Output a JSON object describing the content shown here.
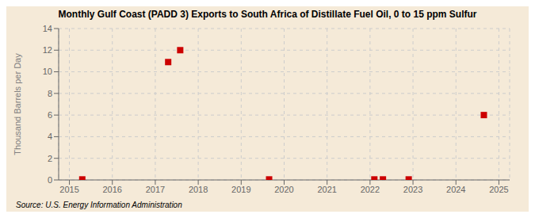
{
  "chart_data": {
    "type": "scatter",
    "title": "Monthly Gulf Coast (PADD 3) Exports to South Africa of Distillate Fuel Oil, 0 to 15 ppm Sulfur",
    "y_label": "Thousand Barrels per Day",
    "annotations": [
      "Source: U.S. Energy Information Administration"
    ],
    "x": [
      2015.3,
      2017.3,
      2017.58,
      2019.65,
      2022.1,
      2022.3,
      2022.9,
      2024.65
    ],
    "values": [
      0.05,
      10.9,
      12.0,
      0.05,
      0.05,
      0.05,
      0.05,
      6.0
    ],
    "color": "#cc0000",
    "marker": "square",
    "xlim": [
      2014.75,
      2025.25
    ],
    "xticks": [
      2015,
      2016,
      2017,
      2018,
      2019,
      2020,
      2021,
      2022,
      2023,
      2024,
      2025
    ],
    "ylim": [
      0,
      14
    ],
    "yticks": [
      0,
      2,
      4,
      6,
      8,
      10,
      12,
      14
    ],
    "grid": true
  }
}
